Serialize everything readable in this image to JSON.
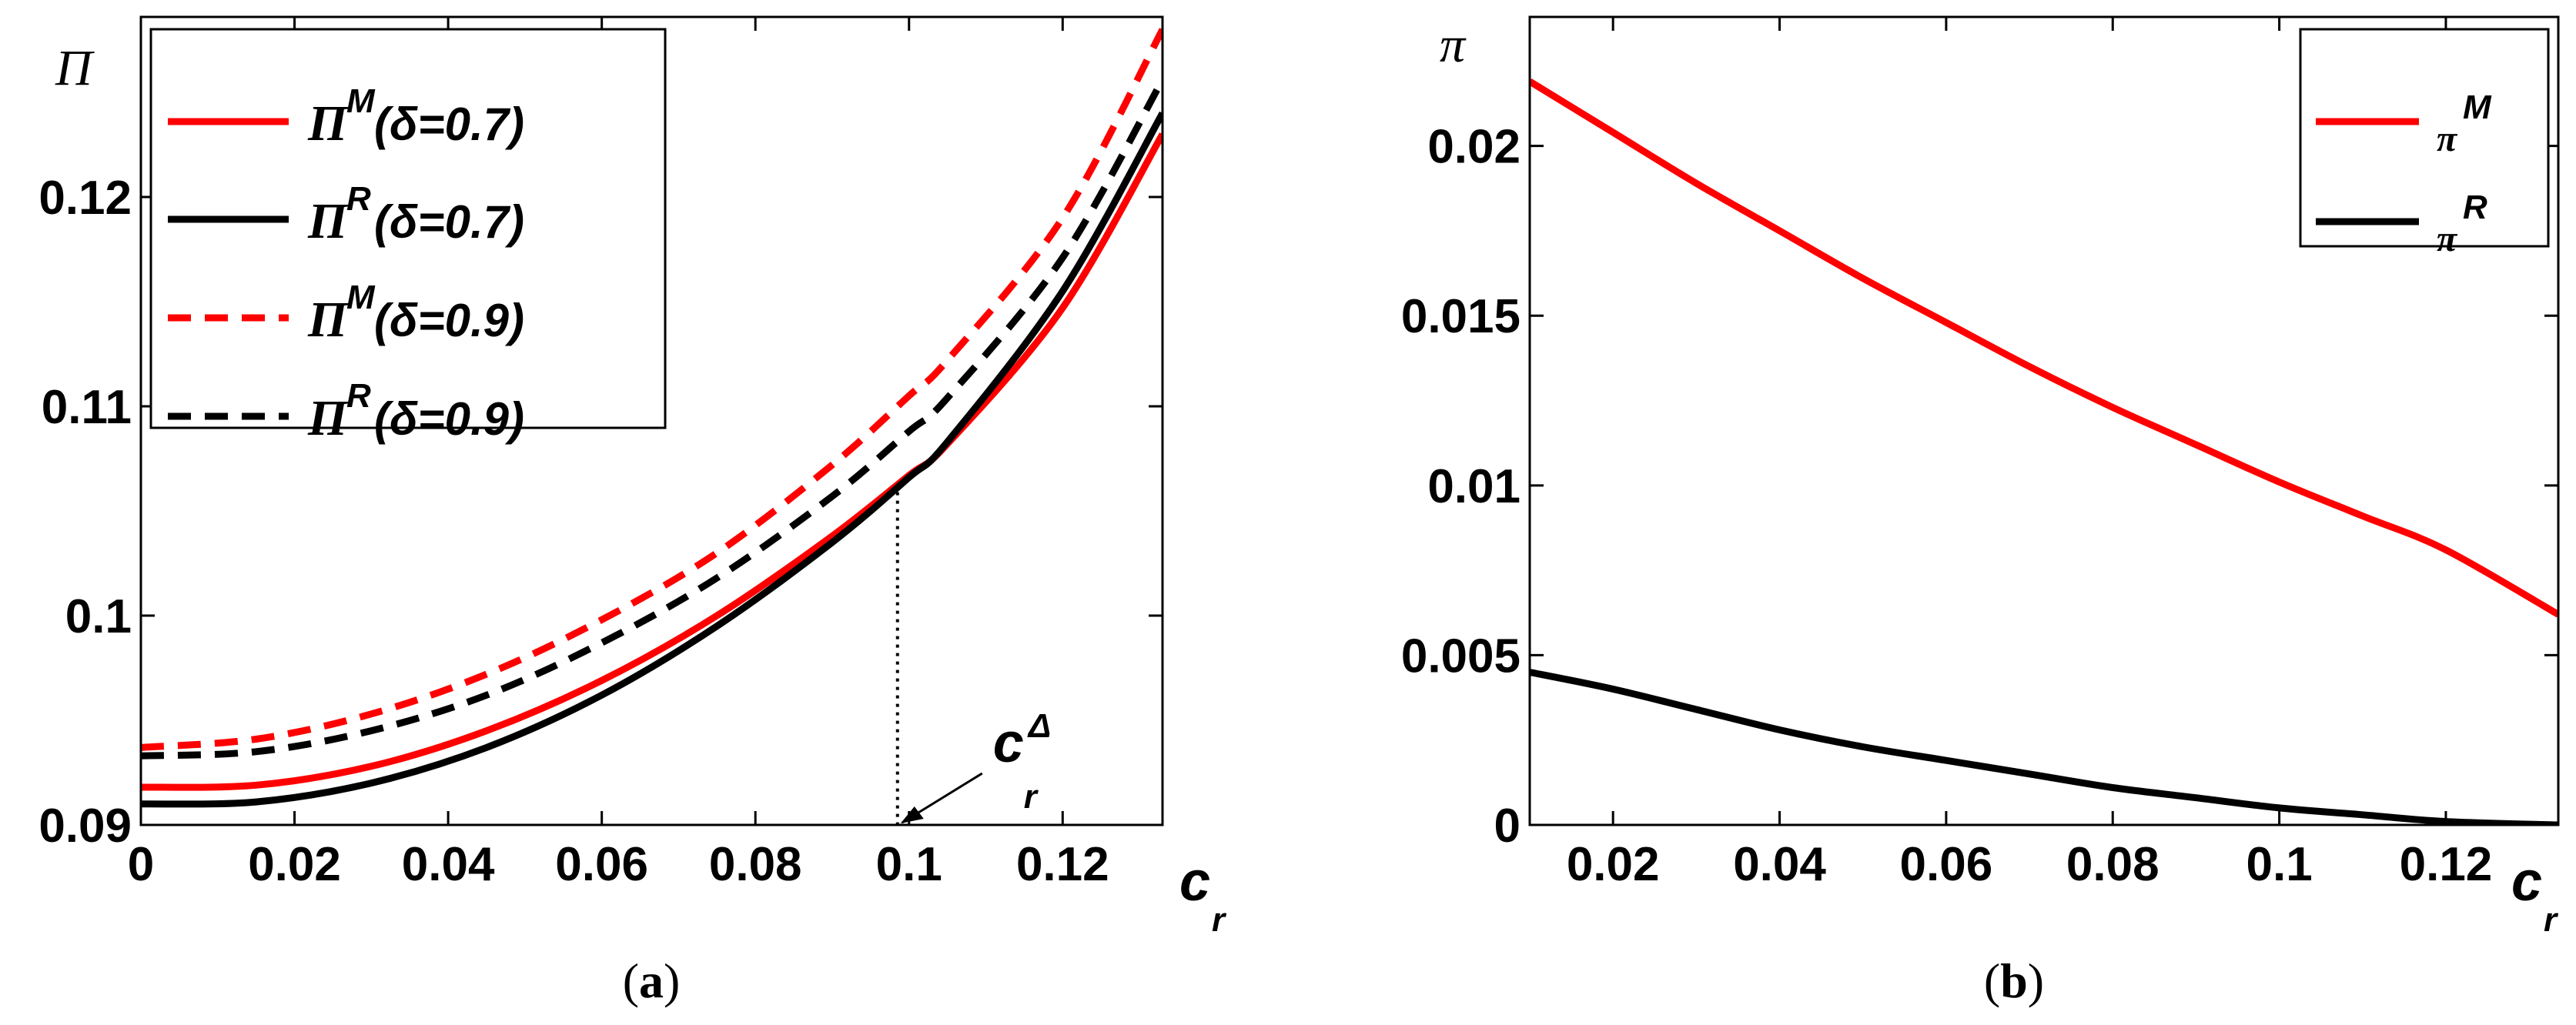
{
  "chart_data": [
    {
      "panel": "a",
      "type": "line",
      "caption_open": "(",
      "caption_letter": "a",
      "caption_close": ")",
      "ylabel": "Π",
      "xlabel_main": "c",
      "xlabel_sub": "r",
      "xlim": [
        0,
        0.133
      ],
      "ylim": [
        0.09,
        0.1286
      ],
      "xticks": [
        "0",
        "0.02",
        "0.04",
        "0.06",
        "0.08",
        "0.1",
        "0.12"
      ],
      "xtick_values": [
        0,
        0.02,
        0.04,
        0.06,
        0.08,
        0.1,
        0.12
      ],
      "yticks": [
        "0.09",
        "0.1",
        "0.11",
        "0.12"
      ],
      "ytick_values": [
        0.09,
        0.1,
        0.11,
        0.12
      ],
      "legend_position": "top-left",
      "series": [
        {
          "name": "Π^M(δ=0.7)",
          "base": "Π",
          "sup": "M",
          "rest": "(δ=0.7)",
          "color": "#ff0000",
          "dash": "solid",
          "x": [
            0,
            0.015,
            0.03,
            0.045,
            0.06,
            0.075,
            0.09,
            0.1,
            0.105,
            0.12,
            0.133
          ],
          "y": [
            0.0918,
            0.0919,
            0.0928,
            0.0945,
            0.0969,
            0.1,
            0.1038,
            0.1067,
            0.1082,
            0.1147,
            0.123
          ]
        },
        {
          "name": "Π^R(δ=0.7)",
          "base": "Π",
          "sup": "R",
          "rest": "(δ=0.7)",
          "color": "#000000",
          "dash": "solid",
          "x": [
            0,
            0.015,
            0.03,
            0.045,
            0.06,
            0.075,
            0.09,
            0.1,
            0.105,
            0.12,
            0.133
          ],
          "y": [
            0.091,
            0.0911,
            0.092,
            0.0937,
            0.0962,
            0.0995,
            0.1035,
            0.1066,
            0.1083,
            0.1155,
            0.124
          ]
        },
        {
          "name": "Π^M(δ=0.9)",
          "base": "Π",
          "sup": "M",
          "rest": "(δ=0.9)",
          "color": "#ff0000",
          "dash": "dashed",
          "x": [
            0,
            0.015,
            0.03,
            0.045,
            0.06,
            0.075,
            0.09,
            0.1,
            0.105,
            0.12,
            0.133
          ],
          "y": [
            0.0937,
            0.0941,
            0.0953,
            0.0972,
            0.0998,
            0.103,
            0.1072,
            0.1105,
            0.1122,
            0.119,
            0.128
          ]
        },
        {
          "name": "Π^R(δ=0.9)",
          "base": "Π",
          "sup": "R",
          "rest": "(δ=0.9)",
          "color": "#000000",
          "dash": "dashed",
          "x": [
            0,
            0.015,
            0.03,
            0.045,
            0.06,
            0.075,
            0.09,
            0.1,
            0.105,
            0.12,
            0.133
          ],
          "y": [
            0.0933,
            0.0935,
            0.0945,
            0.0962,
            0.0987,
            0.1018,
            0.1057,
            0.1088,
            0.1104,
            0.1171,
            0.1256
          ]
        }
      ],
      "annotation": {
        "label": "c",
        "sub": "r",
        "sup": "Δ",
        "x": 0.0985,
        "y_top": 0.1063
      }
    },
    {
      "panel": "b",
      "type": "line",
      "caption_open": "(",
      "caption_letter": "b",
      "caption_close": ")",
      "ylabel": "π",
      "xlabel_main": "c",
      "xlabel_sub": "r",
      "xlim": [
        0.01,
        0.1335
      ],
      "ylim": [
        0,
        0.0238
      ],
      "xticks": [
        "0.02",
        "0.04",
        "0.06",
        "0.08",
        "0.1",
        "0.12"
      ],
      "xtick_values": [
        0.02,
        0.04,
        0.06,
        0.08,
        0.1,
        0.12
      ],
      "yticks": [
        "0",
        "0.005",
        "0.01",
        "0.015",
        "0.02"
      ],
      "ytick_values": [
        0,
        0.005,
        0.01,
        0.015,
        0.02
      ],
      "legend_position": "top-right",
      "series": [
        {
          "name": "π^M",
          "base": "π",
          "sup": "M",
          "rest": "",
          "color": "#ff0000",
          "dash": "solid",
          "x": [
            0.01,
            0.02,
            0.03,
            0.04,
            0.05,
            0.06,
            0.07,
            0.08,
            0.09,
            0.1,
            0.11,
            0.12,
            0.1335
          ],
          "y": [
            0.0219,
            0.0204,
            0.0189,
            0.0175,
            0.0161,
            0.0148,
            0.0135,
            0.0123,
            0.0112,
            0.0101,
            0.0091,
            0.0081,
            0.0062
          ]
        },
        {
          "name": "π^R",
          "base": "π",
          "sup": "R",
          "rest": "",
          "color": "#000000",
          "dash": "solid",
          "x": [
            0.01,
            0.02,
            0.03,
            0.04,
            0.05,
            0.06,
            0.07,
            0.08,
            0.09,
            0.1,
            0.11,
            0.12,
            0.1335
          ],
          "y": [
            0.0045,
            0.004,
            0.0034,
            0.0028,
            0.0023,
            0.0019,
            0.0015,
            0.0011,
            0.0008,
            0.0005,
            0.0003,
            0.0001,
            0.0
          ]
        }
      ]
    }
  ]
}
